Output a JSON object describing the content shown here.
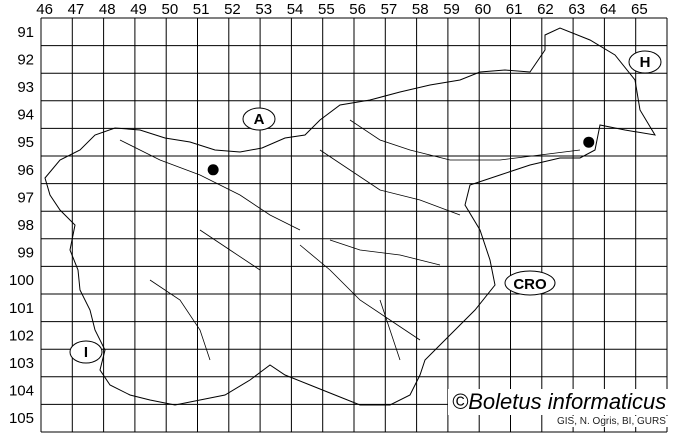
{
  "map": {
    "column_labels": [
      "46",
      "47",
      "48",
      "49",
      "50",
      "51",
      "52",
      "53",
      "54",
      "55",
      "56",
      "57",
      "58",
      "59",
      "60",
      "61",
      "62",
      "63",
      "64",
      "65"
    ],
    "row_labels": [
      "91",
      "92",
      "93",
      "94",
      "95",
      "96",
      "97",
      "98",
      "99",
      "100",
      "101",
      "102",
      "103",
      "104",
      "105"
    ],
    "country_labels": {
      "austria": "A",
      "hungary": "H",
      "croatia": "CRO",
      "italy": "I"
    },
    "records": [
      {
        "column": "51",
        "row": "96"
      },
      {
        "column": "63",
        "row": "95"
      }
    ],
    "copyright": "©Boletus informaticus",
    "credit": "GIS, N. Ogris, BI, GURS"
  }
}
